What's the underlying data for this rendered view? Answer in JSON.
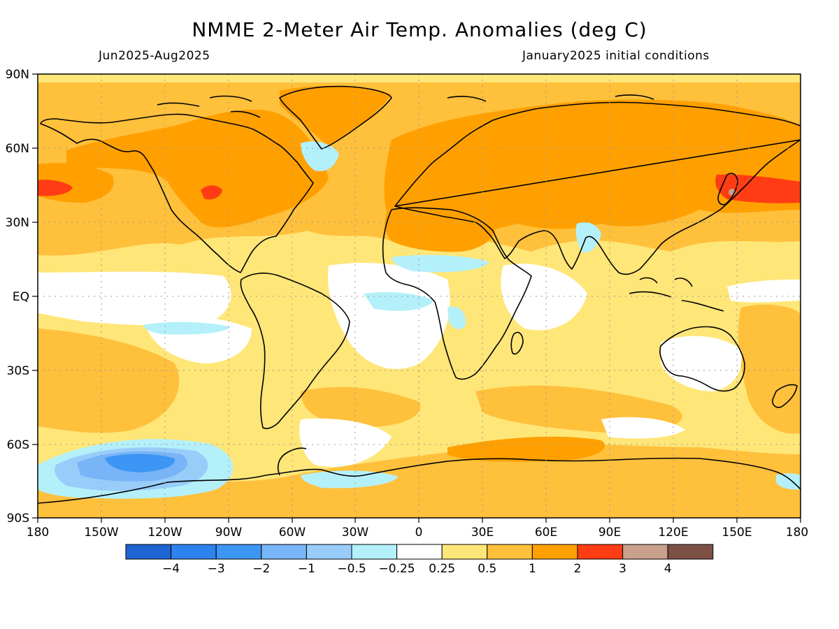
{
  "header": {
    "title": "NMME 2-Meter Air Temp. Anomalies (deg C)",
    "period": "Jun2025-Aug2025",
    "initial_conditions": "January2025 initial conditions"
  },
  "axes": {
    "lat_labels": [
      "90N",
      "60N",
      "30N",
      "EQ",
      "30S",
      "60S",
      "90S"
    ],
    "lon_labels": [
      "180",
      "150W",
      "120W",
      "90W",
      "60W",
      "30W",
      "0",
      "30E",
      "60E",
      "90E",
      "120E",
      "150E",
      "180"
    ]
  },
  "colorbar": {
    "colors": [
      "#1e64d2",
      "#2d82f0",
      "#3c96f5",
      "#78b4f8",
      "#98cdfa",
      "#b4f0fa",
      "#ffffff",
      "#ffe678",
      "#ffc03c",
      "#ffa000",
      "#ff3c14",
      "#c8a08c",
      "#7d5046"
    ],
    "labels": [
      "-4",
      "-3",
      "-2",
      "-1",
      "-0.5",
      "-0.25",
      "0.25",
      "0.5",
      "1",
      "2",
      "3",
      "4"
    ]
  },
  "legend_colors": {
    "ocean_base": "#ffe678",
    "warm_land": "#ffa000",
    "moderate": "#ffc03c",
    "neutral": "#ffffff",
    "cool": "#b4f0fa",
    "cold": "#78b4f8",
    "coldest": "#3c96f5",
    "hot": "#ff3c14",
    "coastline": "#000000",
    "grid": "#999999"
  }
}
